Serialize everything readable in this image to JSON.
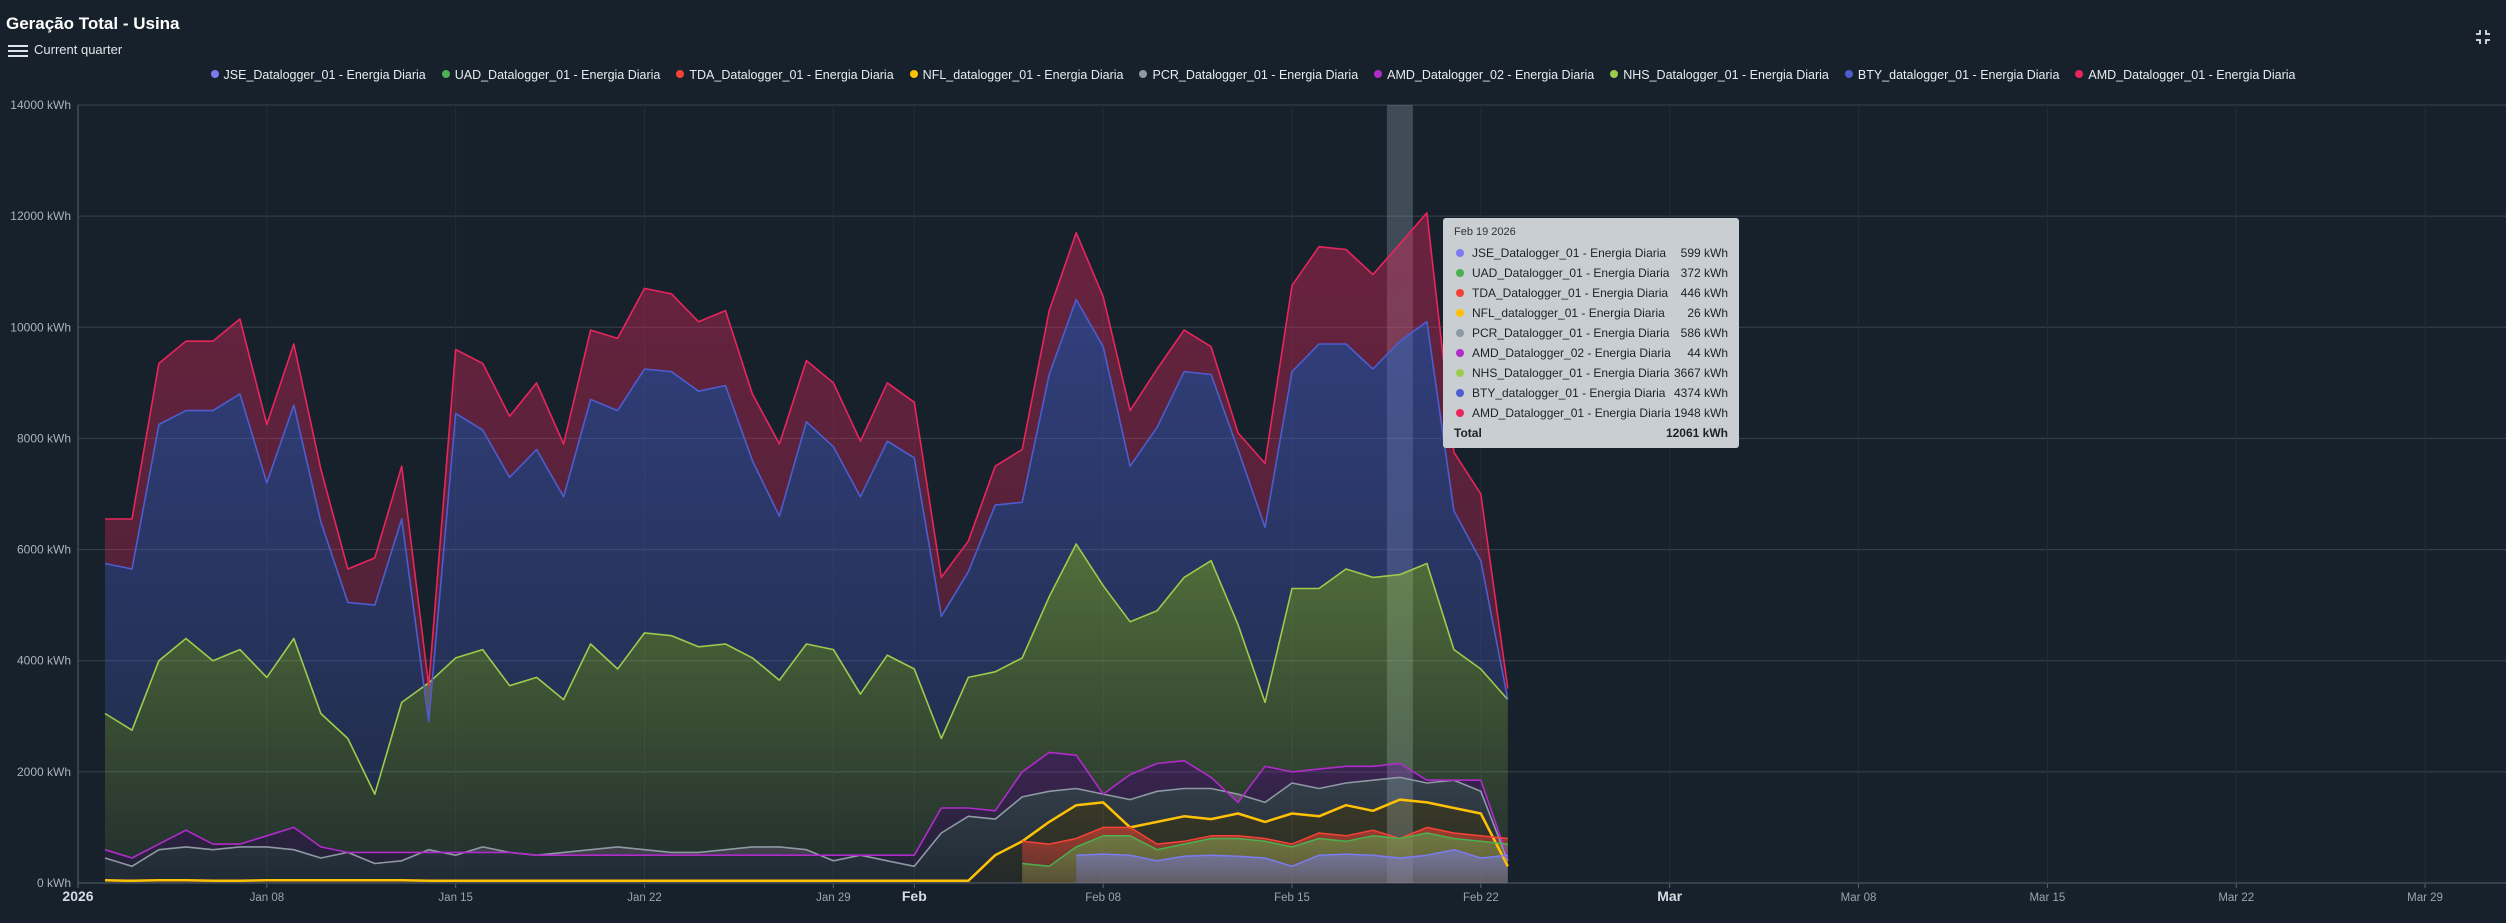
{
  "header": {
    "title": "Geração Total - Usina",
    "period_label": "Current quarter"
  },
  "icons": {
    "menu": "hamburger-menu-icon",
    "fullscreen": "fullscreen-exit-icon"
  },
  "legend": [
    {
      "label": "JSE_Datalogger_01 - Energia Diaria",
      "color": "#7b7cf0"
    },
    {
      "label": "UAD_Datalogger_01 - Energia Diaria",
      "color": "#4caf50"
    },
    {
      "label": "TDA_Datalogger_01 - Energia Diaria",
      "color": "#f44336"
    },
    {
      "label": "NFL_datalogger_01 - Energia Diaria",
      "color": "#ffc107"
    },
    {
      "label": "PCR_Datalogger_01 - Energia Diaria",
      "color": "#8e99a4"
    },
    {
      "label": "AMD_Datalogger_02 - Energia Diaria",
      "color": "#b02cc9"
    },
    {
      "label": "NHS_Datalogger_01 - Energia Diaria",
      "color": "#9ccc4c"
    },
    {
      "label": "BTY_datalogger_01 - Energia Diaria",
      "color": "#4c5dcf"
    },
    {
      "label": "AMD_Datalogger_01 - Energia Diaria",
      "color": "#e8255c"
    }
  ],
  "tooltip": {
    "date": "Feb 19 2026",
    "rows": [
      {
        "label": "JSE_Datalogger_01 - Energia Diaria",
        "value": "599 kWh",
        "color": "#7b7cf0"
      },
      {
        "label": "UAD_Datalogger_01 - Energia Diaria",
        "value": "372 kWh",
        "color": "#4caf50"
      },
      {
        "label": "TDA_Datalogger_01 - Energia Diaria",
        "value": "446 kWh",
        "color": "#f44336"
      },
      {
        "label": "NFL_datalogger_01 - Energia Diaria",
        "value": "26 kWh",
        "color": "#ffc107"
      },
      {
        "label": "PCR_Datalogger_01 - Energia Diaria",
        "value": "586 kWh",
        "color": "#8e99a4"
      },
      {
        "label": "AMD_Datalogger_02 - Energia Diaria",
        "value": "44 kWh",
        "color": "#b02cc9"
      },
      {
        "label": "NHS_Datalogger_01 - Energia Diaria",
        "value": "3667 kWh",
        "color": "#9ccc4c"
      },
      {
        "label": "BTY_datalogger_01 - Energia Diaria",
        "value": "4374 kWh",
        "color": "#4c5dcf"
      },
      {
        "label": "AMD_Datalogger_01 - Energia Diaria",
        "value": "1948 kWh",
        "color": "#e8255c"
      }
    ],
    "total_label": "Total",
    "total_value": "12061 kWh"
  },
  "chart_data": {
    "type": "area",
    "stacked": true,
    "x_start": "2026-01-02",
    "x_end": "2026-02-23",
    "x_range": [
      "2026-01-01",
      "2026-04-01"
    ],
    "ylim": [
      0,
      14000
    ],
    "y_ticks": [
      {
        "value": 0,
        "label": "0 kWh"
      },
      {
        "value": 2000,
        "label": "2000 kWh"
      },
      {
        "value": 4000,
        "label": "4000 kWh"
      },
      {
        "value": 6000,
        "label": "6000 kWh"
      },
      {
        "value": 8000,
        "label": "8000 kWh"
      },
      {
        "value": 10000,
        "label": "10000 kWh"
      },
      {
        "value": 12000,
        "label": "12000 kWh"
      },
      {
        "value": 14000,
        "label": "14000 kWh"
      }
    ],
    "x_ticks": [
      {
        "date": "2026-01-01",
        "label": "2026",
        "major": true
      },
      {
        "date": "2026-01-08",
        "label": "Jan 08",
        "major": false
      },
      {
        "date": "2026-01-15",
        "label": "Jan 15",
        "major": false
      },
      {
        "date": "2026-01-22",
        "label": "Jan 22",
        "major": false
      },
      {
        "date": "2026-01-29",
        "label": "Jan 29",
        "major": false
      },
      {
        "date": "2026-02-01",
        "label": "Feb",
        "major": true
      },
      {
        "date": "2026-02-08",
        "label": "Feb 08",
        "major": false
      },
      {
        "date": "2026-02-15",
        "label": "Feb 15",
        "major": false
      },
      {
        "date": "2026-02-22",
        "label": "Feb 22",
        "major": false
      },
      {
        "date": "2026-03-01",
        "label": "Mar",
        "major": true
      },
      {
        "date": "2026-03-08",
        "label": "Mar 08",
        "major": false
      },
      {
        "date": "2026-03-15",
        "label": "Mar 15",
        "major": false
      },
      {
        "date": "2026-03-22",
        "label": "Mar 22",
        "major": false
      },
      {
        "date": "2026-03-29",
        "label": "Mar 29",
        "major": false
      }
    ],
    "highlight_date": "2026-02-19",
    "cumulative": [
      {
        "name": "NFL_datalogger_01 - Energia Diaria",
        "color": "#ffc107",
        "values": [
          50,
          40,
          50,
          50,
          40,
          40,
          50,
          50,
          50,
          50,
          50,
          50,
          40,
          40,
          40,
          40,
          40,
          40,
          40,
          40,
          40,
          40,
          40,
          40,
          40,
          40,
          40,
          40,
          40,
          40,
          40,
          40,
          40,
          500,
          750,
          1100,
          1400,
          1450,
          1000,
          1100,
          1200,
          1150,
          1250,
          1100,
          1250,
          1200,
          1400,
          1300,
          1500,
          1450,
          1350,
          1250,
          300
        ]
      },
      {
        "name": "PCR_Datalogger_01 - Energia Diaria",
        "color": "#8e99a4",
        "values": [
          450,
          300,
          600,
          650,
          600,
          650,
          650,
          600,
          450,
          550,
          350,
          400,
          600,
          500,
          650,
          550,
          500,
          550,
          600,
          650,
          600,
          550,
          550,
          600,
          650,
          650,
          600,
          400,
          500,
          400,
          300,
          900,
          1200,
          1150,
          1550,
          1650,
          1700,
          1600,
          1500,
          1650,
          1700,
          1700,
          1600,
          1450,
          1800,
          1700,
          1800,
          1850,
          1900,
          1800,
          1850,
          1650,
          400
        ]
      },
      {
        "name": "AMD_Datalogger_02 - Energia Diaria",
        "color": "#b02cc9",
        "values": [
          600,
          450,
          700,
          950,
          700,
          700,
          850,
          1000,
          650,
          550,
          550,
          550,
          550,
          550,
          550,
          550,
          500,
          500,
          500,
          500,
          500,
          500,
          500,
          500,
          500,
          500,
          500,
          500,
          500,
          500,
          500,
          1350,
          1350,
          1300,
          2000,
          2350,
          2300,
          1600,
          1950,
          2150,
          2200,
          1900,
          1450,
          2100,
          2000,
          2050,
          2100,
          2100,
          2150,
          1850,
          1850,
          1850,
          450
        ]
      },
      {
        "name": "NHS_Datalogger_01 - Energia Diaria",
        "color": "#9ccc4c",
        "values": [
          3050,
          2750,
          4000,
          4400,
          4000,
          4200,
          3700,
          4400,
          3050,
          2600,
          1600,
          3250,
          3600,
          4050,
          4200,
          3550,
          3700,
          3300,
          4300,
          3850,
          4500,
          4450,
          4250,
          4300,
          4050,
          3650,
          4300,
          4200,
          3400,
          4100,
          3850,
          2600,
          3700,
          3800,
          4050,
          5150,
          6100,
          5350,
          4700,
          4900,
          5500,
          5800,
          4650,
          3250,
          5300,
          5300,
          5650,
          5500,
          5550,
          5750,
          4200,
          3850,
          3300
        ]
      },
      {
        "name": "BTY_datalogger_01 - Energia Diaria",
        "color": "#4c5dcf",
        "values": [
          5750,
          5650,
          8250,
          8500,
          8500,
          8800,
          7200,
          8600,
          6500,
          5050,
          5000,
          6550,
          2900,
          8450,
          8150,
          7300,
          7800,
          6950,
          8700,
          8500,
          9250,
          9200,
          8850,
          8950,
          7600,
          6600,
          8300,
          7850,
          6950,
          7950,
          7650,
          4800,
          5600,
          6800,
          6850,
          9150,
          10500,
          9650,
          7500,
          8200,
          9200,
          9150,
          7800,
          6400,
          9200,
          9700,
          9700,
          9250,
          9750,
          10100,
          6700,
          5800,
          3300
        ]
      },
      {
        "name": "AMD_Datalogger_01 - Energia Diaria",
        "color": "#e8255c",
        "values": [
          6550,
          6550,
          9350,
          9750,
          9750,
          10150,
          8250,
          9700,
          7450,
          5650,
          5850,
          7500,
          3550,
          9600,
          9350,
          8400,
          9000,
          7900,
          9950,
          9800,
          10700,
          10600,
          10100,
          10300,
          8800,
          7900,
          9400,
          9000,
          7950,
          9000,
          8650,
          5500,
          6150,
          7500,
          7800,
          10300,
          11700,
          10550,
          8500,
          9250,
          9950,
          9650,
          8100,
          7550,
          10750,
          11450,
          11400,
          10950,
          11500,
          12061,
          7750,
          7000,
          3500
        ]
      }
    ],
    "partial_series": [
      {
        "name": "TDA_Datalogger_01 - Energia Diaria",
        "color": "#f44336",
        "start_date": "2026-02-05",
        "values": [
          750,
          700,
          800,
          1000,
          1000,
          700,
          750,
          850,
          850,
          800,
          700,
          900,
          850,
          950,
          800,
          1000,
          900,
          850,
          800
        ]
      },
      {
        "name": "UAD_Datalogger_01 - Energia Diaria",
        "color": "#4caf50",
        "start_date": "2026-02-05",
        "values": [
          350,
          300,
          650,
          850,
          850,
          600,
          700,
          800,
          800,
          750,
          650,
          800,
          750,
          850,
          800,
          900,
          800,
          750,
          700
        ]
      },
      {
        "name": "JSE_Datalogger_01 - Energia Diaria",
        "color": "#7b7cf0",
        "start_date": "2026-02-07",
        "values": [
          500,
          520,
          500,
          400,
          480,
          500,
          480,
          450,
          300,
          500,
          520,
          500,
          450,
          500,
          599,
          450,
          500
        ]
      }
    ]
  }
}
